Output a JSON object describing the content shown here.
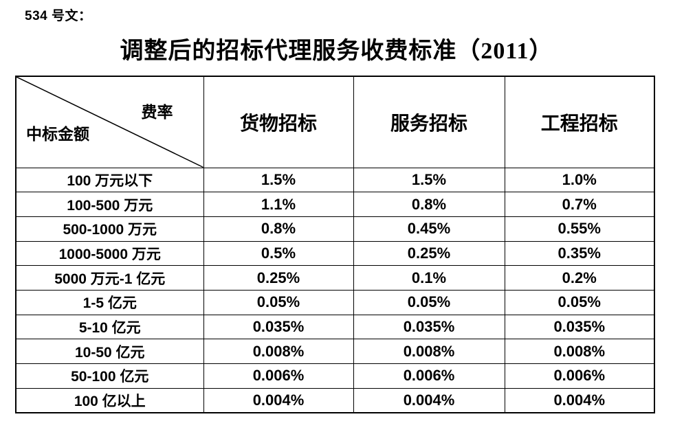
{
  "page": {
    "doc_label": "534 号文：",
    "title": "调整后的招标代理服务收费标准（2011）"
  },
  "table": {
    "corner": {
      "top_right": "费率",
      "bottom_left": "中标金额"
    },
    "columns": [
      "货物招标",
      "服务招标",
      "工程招标"
    ],
    "rows": [
      {
        "label": "100 万元以下",
        "values": [
          "1.5%",
          "1.5%",
          "1.0%"
        ]
      },
      {
        "label": "100-500 万元",
        "values": [
          "1.1%",
          "0.8%",
          "0.7%"
        ]
      },
      {
        "label": "500-1000 万元",
        "values": [
          "0.8%",
          "0.45%",
          "0.55%"
        ]
      },
      {
        "label": "1000-5000 万元",
        "values": [
          "0.5%",
          "0.25%",
          "0.35%"
        ]
      },
      {
        "label": "5000 万元-1 亿元",
        "values": [
          "0.25%",
          "0.1%",
          "0.2%"
        ]
      },
      {
        "label": "1-5 亿元",
        "values": [
          "0.05%",
          "0.05%",
          "0.05%"
        ]
      },
      {
        "label": "5-10 亿元",
        "values": [
          "0.035%",
          "0.035%",
          "0.035%"
        ]
      },
      {
        "label": "10-50 亿元",
        "values": [
          "0.008%",
          "0.008%",
          "0.008%"
        ]
      },
      {
        "label": "50-100 亿元",
        "values": [
          "0.006%",
          "0.006%",
          "0.006%"
        ]
      },
      {
        "label": "100 亿以上",
        "values": [
          "0.004%",
          "0.004%",
          "0.004%"
        ]
      }
    ],
    "colors": {
      "text": "#000000",
      "border": "#000000",
      "background": "#ffffff"
    }
  }
}
